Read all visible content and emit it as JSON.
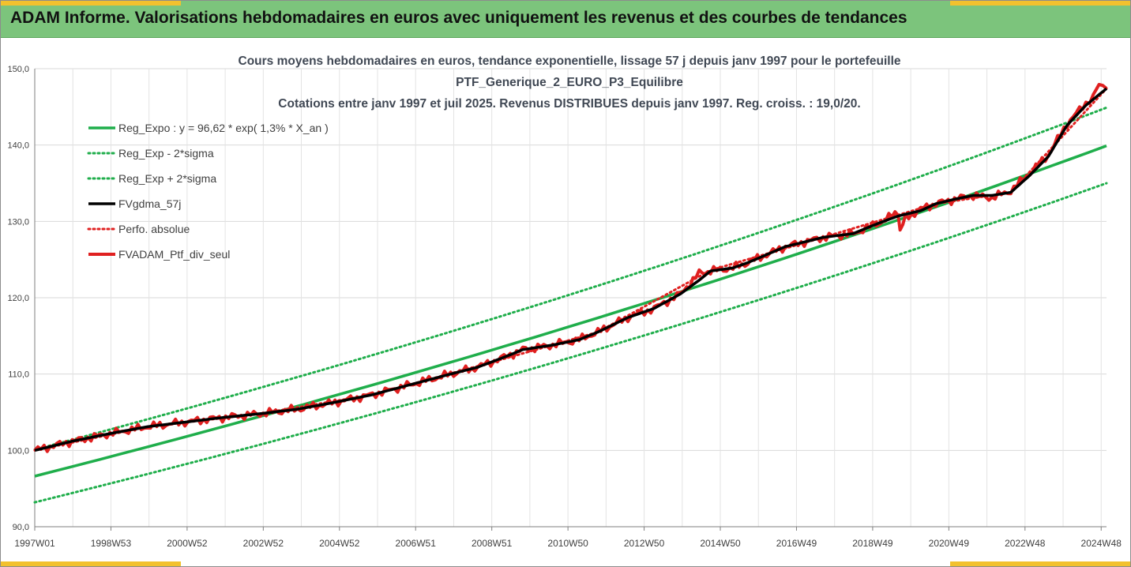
{
  "banner": {
    "title": "ADAM Informe. Valorisations hebdomadaires en euros avec uniquement les revenus et des courbes de tendances",
    "color": "#7cc47c",
    "accent_color": "#f2c12e"
  },
  "chart_data": {
    "type": "line",
    "title_lines": [
      "Cours moyens hebdomadaires  en euros, tendance exponentielle, lissage 57 j depuis janv 1997 pour le portefeuille",
      "PTF_Generique_2_EURO_P3_Equilibre",
      "Cotations  entre janv 1997 et juil 2025. Revenus DISTRIBUES depuis janv 1997. Reg. croiss. : 19,0/20."
    ],
    "xlabel": "",
    "ylabel": "",
    "ylim": [
      90,
      150
    ],
    "xlim": [
      1997.0,
      2025.55
    ],
    "y_ticks": [
      "90,0",
      "100,0",
      "110,0",
      "120,0",
      "130,0",
      "140,0",
      "150,0"
    ],
    "x_ticks": [
      "1997W01",
      "1998W53",
      "2000W52",
      "2002W52",
      "2004W52",
      "2006W51",
      "2008W51",
      "2010W50",
      "2012W50",
      "2014W50",
      "2016W49",
      "2018W49",
      "2020W49",
      "2022W48",
      "2024W48"
    ],
    "grid": true,
    "legend_position": "top-left",
    "series": [
      {
        "name": "Reg_Expo : y = 96,62 * exp( 1,3% *  X_an )",
        "color": "#1fae4b",
        "style": "solid",
        "x": [
          1997.0,
          2025.55
        ],
        "values": [
          96.62,
          139.9
        ]
      },
      {
        "name": "Reg_Exp - 2*sigma",
        "color": "#1fae4b",
        "style": "dotted",
        "x": [
          1997.0,
          2025.55
        ],
        "values": [
          93.2,
          135.0
        ]
      },
      {
        "name": "Reg_Exp + 2*sigma",
        "color": "#1fae4b",
        "style": "dotted",
        "x": [
          1997.0,
          2025.55
        ],
        "values": [
          100.1,
          144.9
        ]
      },
      {
        "name": "FVgdma_57j",
        "color": "#000000",
        "style": "solid",
        "x": [
          1997.0,
          1998.0,
          1999.0,
          2000.0,
          2001.0,
          2002.0,
          2003.0,
          2004.0,
          2005.0,
          2006.0,
          2007.0,
          2008.0,
          2008.8,
          2009.5,
          2010.0,
          2010.8,
          2011.5,
          2012.0,
          2012.8,
          2013.5,
          2014.2,
          2014.7,
          2015.0,
          2015.6,
          2016.0,
          2017.0,
          2018.0,
          2018.8,
          2019.5,
          2020.0,
          2020.6,
          2021.0,
          2021.5,
          2022.0,
          2022.5,
          2023.0,
          2023.5,
          2024.0,
          2024.5,
          2025.0,
          2025.55
        ],
        "values": [
          100.0,
          101.2,
          102.2,
          103.1,
          103.7,
          104.3,
          104.8,
          105.4,
          106.3,
          107.3,
          108.6,
          109.9,
          110.9,
          112.2,
          113.2,
          113.8,
          114.5,
          115.5,
          117.4,
          118.6,
          120.5,
          122.3,
          123.5,
          123.9,
          124.6,
          126.7,
          127.9,
          128.4,
          129.8,
          130.7,
          131.4,
          132.3,
          132.9,
          133.4,
          133.4,
          133.8,
          136.0,
          138.5,
          142.6,
          145.2,
          147.4
        ]
      },
      {
        "name": "Perfo. absolue",
        "color": "#e02020",
        "style": "dotted",
        "x": [
          1997.0,
          2000.0,
          2003.0,
          2006.0,
          2009.0,
          2012.0,
          2015.0,
          2018.0,
          2021.0,
          2023.0,
          2025.55
        ],
        "values": [
          100.0,
          103.1,
          104.8,
          107.3,
          111.3,
          115.5,
          123.6,
          127.9,
          132.3,
          133.8,
          147.4
        ]
      },
      {
        "name": "FVADAM_Ptf_div_seul",
        "color": "#e02020",
        "style": "solid-thick",
        "x": [
          1997.0,
          1998.0,
          1999.0,
          2000.0,
          2001.0,
          2002.0,
          2003.0,
          2004.0,
          2005.0,
          2006.0,
          2007.0,
          2008.0,
          2008.8,
          2009.5,
          2010.0,
          2010.8,
          2011.5,
          2012.0,
          2012.8,
          2013.5,
          2014.2,
          2014.7,
          2015.0,
          2015.6,
          2016.0,
          2017.0,
          2018.0,
          2018.8,
          2019.5,
          2020.0,
          2020.05,
          2020.2,
          2020.6,
          2021.0,
          2021.5,
          2022.0,
          2022.5,
          2023.0,
          2023.5,
          2024.0,
          2024.5,
          2025.0,
          2025.2,
          2025.35,
          2025.55
        ],
        "values": [
          100.0,
          101.2,
          102.2,
          103.1,
          103.7,
          104.3,
          104.8,
          105.4,
          106.3,
          107.3,
          108.6,
          109.9,
          110.9,
          112.2,
          113.2,
          113.8,
          114.5,
          115.5,
          117.4,
          118.6,
          120.5,
          123.2,
          123.5,
          123.9,
          124.6,
          126.7,
          127.9,
          128.4,
          129.8,
          131.2,
          128.8,
          130.4,
          131.6,
          132.3,
          132.9,
          133.4,
          133.1,
          134.0,
          136.3,
          138.7,
          142.8,
          145.5,
          146.4,
          147.8,
          147.4
        ]
      }
    ]
  }
}
